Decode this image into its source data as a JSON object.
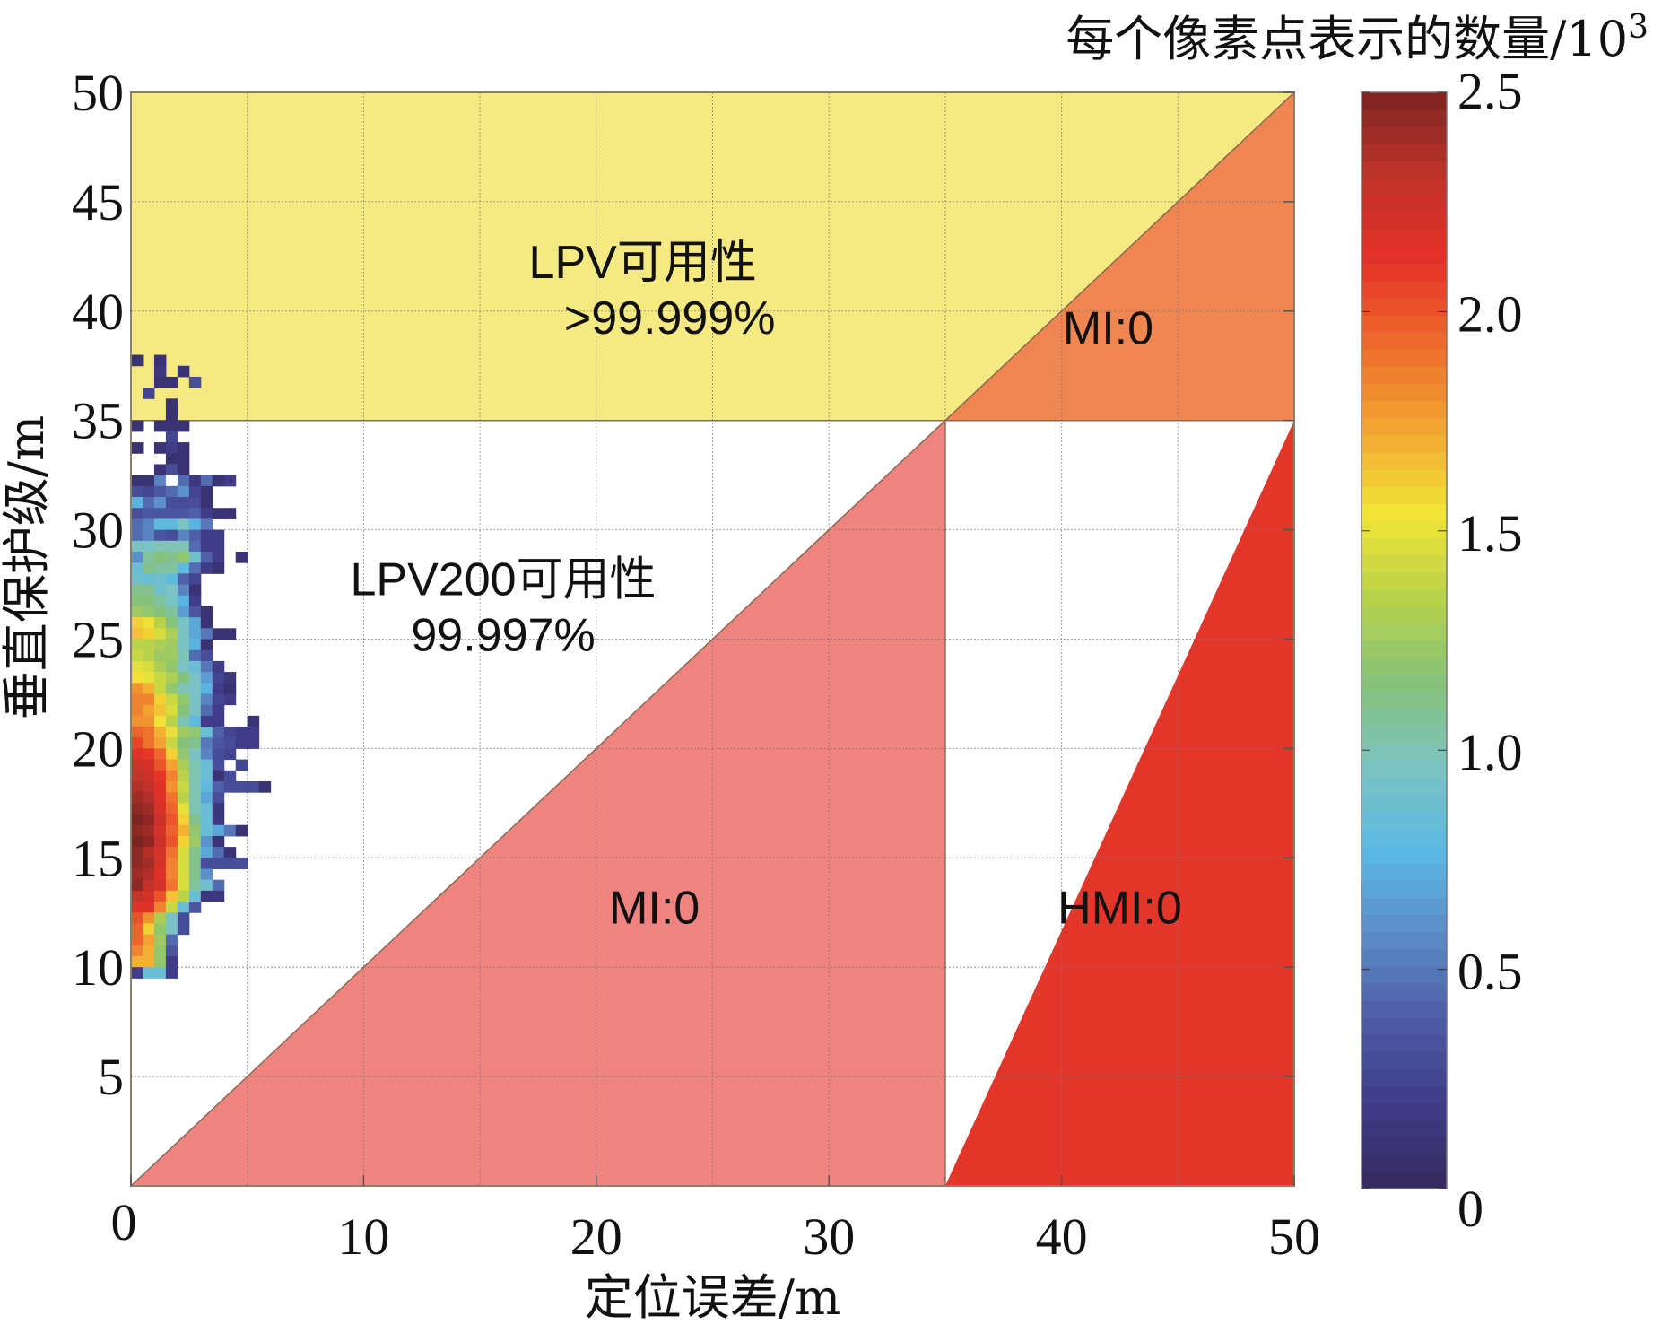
{
  "chart_data": {
    "type": "heatmap",
    "title": "",
    "xlabel": "定位误差/m",
    "ylabel": "垂直保护级/m",
    "xlim": [
      0,
      50
    ],
    "ylim": [
      0,
      50
    ],
    "xticks": [
      0,
      10,
      20,
      30,
      40,
      50
    ],
    "yticks": [
      5,
      10,
      15,
      20,
      25,
      30,
      35,
      40,
      45,
      50
    ],
    "xtick_labels": [
      "0",
      "10",
      "20",
      "30",
      "40",
      "50"
    ],
    "ytick_labels": [
      "5",
      "10",
      "15",
      "20",
      "25",
      "30",
      "35",
      "40",
      "45",
      "50"
    ],
    "grid": true,
    "alert_limit_m": 35,
    "regions": [
      {
        "name": "lpv-availability",
        "label_line1": "LPV可用性",
        "label_line2": ">99.999%",
        "color": "#F5EA82",
        "polygon": [
          [
            0,
            35
          ],
          [
            35,
            35
          ],
          [
            50,
            50
          ],
          [
            0,
            50
          ]
        ],
        "label_pos": [
          22,
          41.5
        ]
      },
      {
        "name": "lpv200-availability",
        "label_line1": "LPV200可用性",
        "label_line2": "99.997%",
        "color": "#FFFFFF",
        "polygon": [
          [
            0,
            0
          ],
          [
            35,
            35
          ],
          [
            0,
            35
          ]
        ],
        "label_pos": [
          16,
          27
        ]
      },
      {
        "name": "mi-upper",
        "label_line1": "MI:0",
        "label_line2": "",
        "color": "#EF8550",
        "polygon": [
          [
            35,
            35
          ],
          [
            50,
            35
          ],
          [
            50,
            50
          ]
        ],
        "label_pos": [
          42,
          38.5
        ]
      },
      {
        "name": "mi-lower",
        "label_line1": "MI:0",
        "label_line2": "",
        "color": "#EF8380",
        "polygon": [
          [
            0,
            0
          ],
          [
            35,
            0
          ],
          [
            35,
            35
          ]
        ],
        "label_pos": [
          22.5,
          12
        ]
      },
      {
        "name": "hmi",
        "label_line1": "HMI:0",
        "label_line2": "",
        "color": "#E3362B",
        "polygon": [
          [
            35,
            0
          ],
          [
            50,
            0
          ],
          [
            50,
            35
          ]
        ],
        "label_pos": [
          42.5,
          12
        ]
      }
    ],
    "heatmap": {
      "bin_size_m": 0.5,
      "x_start_m": 0,
      "y_top_m": 38,
      "units": "每个像素点表示的数量/10³",
      "rows": [
        [
          0.1,
          null,
          0.1,
          null,
          null,
          null
        ],
        [
          null,
          null,
          0.15,
          null,
          0.1
        ],
        [
          null,
          null,
          0.1,
          0.1,
          null,
          0.3
        ],
        [
          null,
          0.25
        ],
        [
          null,
          null,
          null,
          0.1
        ],
        [
          null,
          null,
          null,
          0.1
        ],
        [
          0.1,
          null,
          0.1,
          0.1,
          0.1
        ],
        [
          null,
          null,
          null,
          0.25
        ],
        [
          0.1,
          null,
          0.1,
          0.2,
          0.1
        ],
        [
          null,
          null,
          null,
          0.1,
          0.1
        ],
        [
          null,
          null,
          0.1,
          0.3,
          0.1
        ],
        [
          0.1,
          0.1,
          0.55,
          0,
          0.45,
          0.15,
          0.45,
          0.1,
          0.2
        ],
        [
          0.3,
          0.25,
          0.35,
          0.45,
          0.6,
          0.25,
          0.1
        ],
        [
          0.75,
          0.45,
          0.6,
          0.3,
          0.3,
          0.3,
          0.1
        ],
        [
          0.3,
          0.35,
          0.35,
          0.35,
          0.35,
          0.4,
          0.2,
          0.1,
          0.1
        ],
        [
          0.45,
          0.55,
          0.8,
          0.8,
          0.95,
          0.75,
          0.5
        ],
        [
          0.45,
          0.55,
          0.35,
          0.3,
          0.55,
          0.4,
          0.2,
          0.2
        ],
        [
          0.95,
          0.95,
          1.0,
          1.0,
          1.0,
          0.45,
          0.2,
          0.2
        ],
        [
          0.6,
          1.05,
          1.15,
          1.1,
          1.2,
          0.9,
          0.4,
          0.2,
          null,
          0.1
        ],
        [
          0.85,
          1.1,
          1.05,
          1.05,
          0.8,
          0.45,
          0.2,
          0.1
        ],
        [
          0.9,
          0.85,
          0.9,
          0.8,
          0.4,
          0.25
        ],
        [
          1.1,
          1.1,
          0.9,
          0.95,
          0.55,
          0.1
        ],
        [
          1.15,
          1.15,
          1.05,
          0.95,
          0.75,
          0.2
        ],
        [
          1.25,
          1.2,
          1.15,
          1.05,
          0.65,
          0.35,
          0.1
        ],
        [
          1.6,
          1.55,
          1.35,
          1.15,
          0.95,
          0.7,
          0.1
        ],
        [
          1.65,
          1.6,
          1.45,
          1.3,
          0.95,
          0.7,
          0.5,
          0.1,
          0.1
        ],
        [
          1.35,
          1.35,
          1.3,
          1.25,
          0.95,
          0.75,
          0.1
        ],
        [
          1.4,
          1.35,
          1.25,
          1.25,
          1.0,
          0.45,
          0.3
        ],
        [
          1.5,
          1.45,
          1.3,
          1.2,
          0.95,
          0.85,
          0.5,
          0.2
        ],
        [
          1.55,
          1.5,
          1.4,
          1.3,
          1.15,
          0.95,
          0.65,
          0.25,
          0.15
        ],
        [
          1.8,
          1.7,
          1.4,
          1.2,
          1.0,
          0.95,
          0.75,
          0.2,
          0.1
        ],
        [
          1.85,
          1.85,
          1.6,
          1.4,
          1.2,
          0.95,
          0.55,
          0.25,
          0.2
        ],
        [
          1.85,
          1.75,
          1.65,
          1.45,
          1.15,
          0.95,
          0.45,
          0.2
        ],
        [
          1.8,
          1.8,
          1.55,
          1.35,
          1.0,
          0.8,
          0.2,
          0.2,
          null,
          null,
          0.1
        ],
        [
          1.95,
          1.9,
          1.7,
          1.5,
          1.25,
          1.2,
          0.85,
          0.4,
          0.25,
          0.2,
          0.2
        ],
        [
          2.05,
          1.9,
          1.75,
          1.4,
          1.15,
          1.1,
          0.5,
          0.35,
          0.3,
          0.2,
          0.2
        ],
        [
          2.15,
          2.1,
          1.95,
          1.6,
          1.2,
          0.95,
          0.55,
          0.3,
          0.25
        ],
        [
          2.25,
          2.2,
          2.0,
          1.75,
          1.3,
          1.0,
          0.85,
          0.3,
          null,
          0.25
        ],
        [
          2.3,
          2.25,
          2.1,
          1.85,
          1.35,
          1.0,
          0.85,
          0.1,
          0.3
        ],
        [
          2.35,
          2.3,
          2.15,
          1.8,
          1.4,
          1.0,
          0.8,
          0.4,
          0.3,
          0.3,
          0.3,
          0.1
        ],
        [
          2.4,
          2.35,
          2.15,
          1.9,
          1.35,
          1.0,
          0.7,
          0.3
        ],
        [
          2.45,
          2.4,
          2.2,
          1.95,
          1.5,
          1.0,
          0.85,
          0.15
        ],
        [
          2.5,
          2.45,
          2.25,
          2.0,
          1.6,
          1.1,
          0.85,
          0.15
        ],
        [
          2.45,
          2.4,
          2.2,
          1.95,
          1.7,
          1.2,
          0.85,
          0.7,
          0.5,
          0.1
        ],
        [
          2.5,
          2.45,
          2.25,
          2.0,
          1.6,
          1.25,
          0.6,
          0.1
        ],
        [
          2.45,
          2.35,
          2.2,
          1.9,
          1.45,
          1.1,
          0.7,
          0.45,
          0.1
        ],
        [
          2.45,
          2.4,
          2.2,
          1.85,
          1.45,
          1.1,
          0.3,
          0.3,
          0.3,
          0.3
        ],
        [
          2.4,
          2.35,
          2.15,
          1.85,
          1.45,
          1.1,
          0.6
        ],
        [
          2.45,
          2.3,
          2.2,
          1.9,
          1.45,
          1.05,
          0.9,
          0.45
        ],
        [
          2.3,
          2.2,
          2.0,
          1.65,
          1.35,
          0.85,
          0.15,
          0.15
        ],
        [
          2.15,
          2.15,
          1.85,
          1.4,
          0.85,
          0.35
        ],
        [
          2.0,
          1.8,
          1.3,
          0.95,
          0.3
        ],
        [
          1.95,
          1.6,
          1.2,
          0.95,
          0.3
        ],
        [
          1.95,
          1.75,
          1.25,
          0.45
        ],
        [
          1.85,
          1.7,
          1.2,
          0.35
        ],
        [
          1.7,
          1.7,
          1.2,
          0.2
        ],
        [
          0.2,
          0.85,
          0.85,
          0.2
        ]
      ]
    },
    "colorbar": {
      "label": "每个像素点表示的数量/10³",
      "label_prefix": "每个像素点表示的数量/10",
      "label_sup": "3",
      "min": 0,
      "max": 2.5,
      "ticks": [
        0,
        0.5,
        1.0,
        1.5,
        2.0,
        2.5
      ],
      "tick_labels": [
        "0",
        "0.5",
        "1.0",
        "1.5",
        "2.0",
        "2.5"
      ],
      "colormap_stops": [
        "#352A5E",
        "#3F3B87",
        "#4E5BA6",
        "#5C8BC5",
        "#5BB8E3",
        "#7CC3C2",
        "#86C27B",
        "#B8D24A",
        "#F1E536",
        "#F3A734",
        "#EE6C2D",
        "#E53128",
        "#C1332B",
        "#7C2422"
      ]
    }
  }
}
